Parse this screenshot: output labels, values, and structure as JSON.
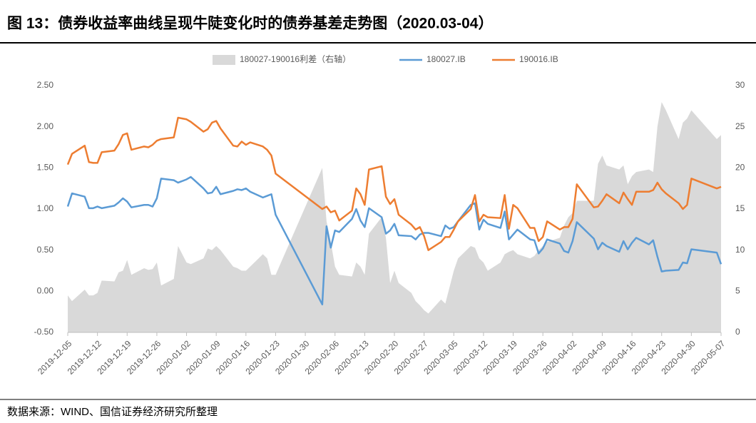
{
  "chart_data": {
    "type": "line",
    "title": "图 13：债券收益率曲线呈现牛陡变化时的债券基差走势图（2020.03-04）",
    "source": "数据来源：WIND、国信证券经济研究所整理",
    "x": [
      "2019-12-05",
      "2019-12-06",
      "2019-12-09",
      "2019-12-10",
      "2019-12-11",
      "2019-12-12",
      "2019-12-13",
      "2019-12-16",
      "2019-12-17",
      "2019-12-18",
      "2019-12-19",
      "2019-12-20",
      "2019-12-23",
      "2019-12-24",
      "2019-12-25",
      "2019-12-26",
      "2019-12-27",
      "2019-12-30",
      "2019-12-31",
      "2020-01-02",
      "2020-01-03",
      "2020-01-06",
      "2020-01-07",
      "2020-01-08",
      "2020-01-09",
      "2020-01-10",
      "2020-01-13",
      "2020-01-14",
      "2020-01-15",
      "2020-01-16",
      "2020-01-17",
      "2020-01-20",
      "2020-01-21",
      "2020-01-22",
      "2020-01-23",
      "2020-02-03",
      "2020-02-04",
      "2020-02-05",
      "2020-02-06",
      "2020-02-07",
      "2020-02-10",
      "2020-02-11",
      "2020-02-12",
      "2020-02-13",
      "2020-02-14",
      "2020-02-17",
      "2020-02-18",
      "2020-02-19",
      "2020-02-20",
      "2020-02-21",
      "2020-02-24",
      "2020-02-25",
      "2020-02-26",
      "2020-02-27",
      "2020-02-28",
      "2020-03-02",
      "2020-03-03",
      "2020-03-04",
      "2020-03-05",
      "2020-03-06",
      "2020-03-09",
      "2020-03-10",
      "2020-03-11",
      "2020-03-12",
      "2020-03-13",
      "2020-03-16",
      "2020-03-17",
      "2020-03-18",
      "2020-03-19",
      "2020-03-20",
      "2020-03-23",
      "2020-03-24",
      "2020-03-25",
      "2020-03-26",
      "2020-03-27",
      "2020-03-30",
      "2020-03-31",
      "2020-04-01",
      "2020-04-02",
      "2020-04-03",
      "2020-04-07",
      "2020-04-08",
      "2020-04-09",
      "2020-04-10",
      "2020-04-13",
      "2020-04-14",
      "2020-04-15",
      "2020-04-16",
      "2020-04-17",
      "2020-04-20",
      "2020-04-21",
      "2020-04-22",
      "2020-04-23",
      "2020-04-24",
      "2020-04-27",
      "2020-04-28",
      "2020-04-29",
      "2020-04-30",
      "2020-05-06",
      "2020-05-07"
    ],
    "series": [
      {
        "name": "180027-190016利差（右轴）",
        "color": "#d9d9d9",
        "axis": "y2",
        "kind": "area",
        "values": [
          4.5,
          3.8,
          5.2,
          4.5,
          4.5,
          4.8,
          6.3,
          6.2,
          7.3,
          7.5,
          8.8,
          7.0,
          7.8,
          7.6,
          7.7,
          8.5,
          5.7,
          6.5,
          10.5,
          8.5,
          8.3,
          9.0,
          10.2,
          10.0,
          10.5,
          10.0,
          8.0,
          7.8,
          7.5,
          7.5,
          8.0,
          9.5,
          9.0,
          7.0,
          7.0,
          20.0,
          13.5,
          11.0,
          8.0,
          7.0,
          6.8,
          8.5,
          8.0,
          7.0,
          12.0,
          14.0,
          11.5,
          6.0,
          7.5,
          6.0,
          4.8,
          3.8,
          3.3,
          2.7,
          2.3,
          4.0,
          3.5,
          5.5,
          7.5,
          9.0,
          10.5,
          10.3,
          9.0,
          8.5,
          7.5,
          8.5,
          9.5,
          9.8,
          10.0,
          9.5,
          9.0,
          9.3,
          10.0,
          10.5,
          11.0,
          11.5,
          13.0,
          14.0,
          14.5,
          16.0,
          16.0,
          20.5,
          21.5,
          20.3,
          19.8,
          20.3,
          18.0,
          19.0,
          19.5,
          19.8,
          19.5,
          25.0,
          28.0,
          27.0,
          23.5,
          25.5,
          26.0,
          27.0,
          23.5,
          24.0
        ]
      },
      {
        "name": "180027.IB",
        "color": "#5b9bd5",
        "kind": "line",
        "values": [
          1.03,
          1.19,
          1.15,
          1.01,
          1.01,
          1.03,
          1.01,
          1.04,
          1.08,
          1.13,
          1.09,
          1.02,
          1.05,
          1.05,
          1.03,
          1.13,
          1.37,
          1.35,
          1.32,
          1.36,
          1.39,
          1.25,
          1.19,
          1.2,
          1.27,
          1.18,
          1.22,
          1.24,
          1.23,
          1.25,
          1.21,
          1.14,
          1.16,
          1.18,
          0.93,
          -0.16,
          0.79,
          0.53,
          0.74,
          0.72,
          0.88,
          1.0,
          0.86,
          0.78,
          1.01,
          0.9,
          0.7,
          0.74,
          0.82,
          0.68,
          0.67,
          0.63,
          0.69,
          0.71,
          0.71,
          0.67,
          0.8,
          0.76,
          0.78,
          0.85,
          1.05,
          1.07,
          0.75,
          0.87,
          0.82,
          0.77,
          0.97,
          0.63,
          0.69,
          0.75,
          0.63,
          0.62,
          0.46,
          0.52,
          0.63,
          0.58,
          0.49,
          0.47,
          0.61,
          0.84,
          0.64,
          0.51,
          0.59,
          0.55,
          0.48,
          0.61,
          0.51,
          0.59,
          0.65,
          0.57,
          0.62,
          0.42,
          0.24,
          0.25,
          0.26,
          0.35,
          0.34,
          0.51,
          0.47,
          0.33
        ]
      },
      {
        "name": "190016.IB",
        "color": "#ed7d31",
        "kind": "line",
        "values": [
          1.54,
          1.67,
          1.77,
          1.57,
          1.56,
          1.56,
          1.69,
          1.71,
          1.79,
          1.9,
          1.92,
          1.72,
          1.76,
          1.75,
          1.78,
          1.83,
          1.85,
          1.87,
          2.11,
          2.09,
          2.06,
          1.94,
          1.97,
          2.05,
          2.07,
          1.98,
          1.77,
          1.76,
          1.82,
          1.78,
          1.81,
          1.76,
          1.72,
          1.65,
          1.43,
          1.0,
          1.03,
          0.96,
          0.98,
          0.86,
          0.98,
          1.25,
          1.18,
          1.05,
          1.48,
          1.52,
          1.15,
          1.06,
          1.12,
          0.93,
          0.81,
          0.75,
          0.78,
          0.67,
          0.5,
          0.6,
          0.66,
          0.66,
          0.75,
          0.85,
          1.0,
          1.17,
          0.85,
          0.93,
          0.9,
          0.89,
          1.17,
          0.76,
          1.05,
          1.01,
          0.77,
          0.77,
          0.61,
          0.66,
          0.85,
          0.75,
          0.78,
          0.78,
          0.88,
          1.3,
          1.02,
          1.03,
          1.1,
          1.18,
          1.07,
          1.2,
          1.12,
          1.05,
          1.21,
          1.21,
          1.23,
          1.32,
          1.24,
          1.19,
          1.07,
          1.0,
          1.05,
          1.37,
          1.25,
          1.27
        ]
      }
    ],
    "xlim": [
      "2019-12-05",
      "2020-05-07"
    ],
    "xticks": [
      "2019-12-05",
      "2019-12-12",
      "2019-12-19",
      "2019-12-26",
      "2020-01-02",
      "2020-01-09",
      "2020-01-16",
      "2020-01-23",
      "2020-01-30",
      "2020-02-06",
      "2020-02-13",
      "2020-02-20",
      "2020-02-27",
      "2020-03-05",
      "2020-03-12",
      "2020-03-19",
      "2020-03-26",
      "2020-04-02",
      "2020-04-09",
      "2020-04-16",
      "2020-04-23",
      "2020-04-30",
      "2020-05-07"
    ],
    "ylim": [
      -0.5,
      2.5
    ],
    "yticks": [
      {
        "value": 2.5,
        "label": "2.50"
      },
      {
        "value": 2.0,
        "label": "2.00"
      },
      {
        "value": 1.5,
        "label": "1.50"
      },
      {
        "value": 1.0,
        "label": "1.00"
      },
      {
        "value": 0.5,
        "label": "0.50"
      },
      {
        "value": 0,
        "label": "0.00"
      },
      {
        "value": -0.5,
        "label": "-0.50"
      }
    ],
    "y2lim": [
      0,
      30
    ],
    "y2ticks": [
      30,
      25,
      20,
      15,
      10,
      5,
      0
    ]
  }
}
